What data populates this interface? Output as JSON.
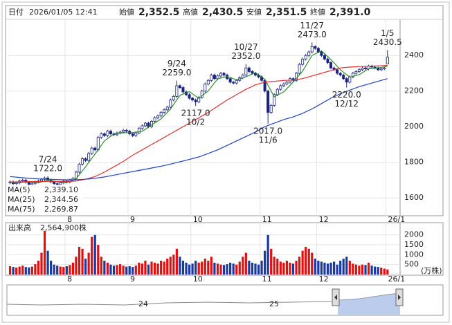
{
  "header": {
    "fields": [
      {
        "label": "日付",
        "value": "2026/01/05 12:41",
        "color": "#222"
      },
      {
        "label": "始値",
        "value": 2352.5,
        "value_label": "2,352.5",
        "color": "#000000"
      },
      {
        "label": "高値",
        "value": 2430.5,
        "value_label": "2,430.5",
        "color": "#e00000"
      },
      {
        "label": "安値",
        "value": 2351.5,
        "value_label": "2,351.5",
        "color": "#008000"
      },
      {
        "label": "終値",
        "value": 2391,
        "value_label": "2,391.0",
        "color": "#000000"
      }
    ]
  },
  "chart_data": [
    {
      "type": "candlestick",
      "up_color": "#ffffff",
      "down_color": "#1a237e",
      "line_color": "#1a237e",
      "ylim": [
        1500,
        2595
      ],
      "yticks": [
        1600,
        1800,
        2000,
        2200,
        2400
      ],
      "xlim": [
        -1,
        124
      ],
      "grid": true,
      "xticks": [
        {
          "value": 17.5,
          "label": "8"
        },
        {
          "value": 37.5,
          "label": "9"
        },
        {
          "value": 57.5,
          "label": "10"
        },
        {
          "value": 79.5,
          "label": "11"
        },
        {
          "value": 97.5,
          "label": "12"
        },
        {
          "value": 119.5,
          "label": "26/1"
        }
      ],
      "candles": {
        "open": [
          1685,
          1690,
          1680,
          1685,
          1695,
          1700,
          1688,
          1675,
          1682,
          1690,
          1695,
          1705,
          1712,
          1700,
          1690,
          1680,
          1675,
          1685,
          1695,
          1690,
          1700,
          1710,
          1745,
          1790,
          1820,
          1810,
          1850,
          1880,
          1870,
          1940,
          1960,
          1950,
          1975,
          1960,
          1955,
          1965,
          1970,
          1980,
          1975,
          1960,
          1950,
          1965,
          1990,
          2005,
          2020,
          2000,
          2030,
          2050,
          2060,
          2080,
          2095,
          2110,
          2150,
          2170,
          2230,
          2220,
          2195,
          2180,
          2160,
          2150,
          2140,
          2165,
          2200,
          2240,
          2260,
          2290,
          2270,
          2285,
          2300,
          2290,
          2270,
          2250,
          2245,
          2260,
          2275,
          2290,
          2330,
          2310,
          2300,
          2290,
          2280,
          2260,
          2200,
          2080,
          2120,
          2180,
          2210,
          2230,
          2240,
          2250,
          2270,
          2260,
          2300,
          2350,
          2380,
          2400,
          2420,
          2450,
          2440,
          2420,
          2400,
          2380,
          2360,
          2330,
          2320,
          2300,
          2290,
          2270,
          2250,
          2280,
          2300,
          2310,
          2320,
          2330,
          2325,
          2340,
          2335,
          2330,
          2320,
          2325,
          2352.5
        ],
        "high": [
          1698,
          1698,
          1693,
          1703,
          1708,
          1708,
          1696,
          1690,
          1698,
          1703,
          1713,
          1720,
          1722,
          1708,
          1698,
          1688,
          1693,
          1703,
          1703,
          1708,
          1718,
          1753,
          1798,
          1828,
          1828,
          1858,
          1888,
          1888,
          1948,
          1968,
          1968,
          1983,
          1983,
          1968,
          1973,
          1978,
          1988,
          1988,
          1983,
          1968,
          1973,
          1998,
          2013,
          2028,
          2028,
          2038,
          2058,
          2068,
          2088,
          2103,
          2118,
          2158,
          2178,
          2259,
          2238,
          2228,
          2203,
          2188,
          2168,
          2158,
          2173,
          2208,
          2248,
          2268,
          2298,
          2298,
          2293,
          2308,
          2308,
          2298,
          2278,
          2258,
          2268,
          2283,
          2298,
          2352,
          2338,
          2318,
          2308,
          2298,
          2288,
          2268,
          2208,
          2128,
          2188,
          2218,
          2238,
          2248,
          2258,
          2278,
          2278,
          2308,
          2358,
          2388,
          2408,
          2428,
          2473,
          2458,
          2448,
          2428,
          2408,
          2388,
          2368,
          2338,
          2328,
          2308,
          2298,
          2278,
          2288,
          2308,
          2318,
          2328,
          2338,
          2338,
          2348,
          2348,
          2343,
          2338,
          2333,
          2338,
          2430.5
        ],
        "low": [
          1677,
          1672,
          1672,
          1677,
          1687,
          1680,
          1667,
          1667,
          1674,
          1682,
          1687,
          1697,
          1692,
          1682,
          1672,
          1667,
          1667,
          1677,
          1682,
          1682,
          1692,
          1702,
          1737,
          1782,
          1802,
          1802,
          1842,
          1862,
          1862,
          1932,
          1942,
          1942,
          1952,
          1947,
          1947,
          1957,
          1962,
          1967,
          1952,
          1942,
          1942,
          1957,
          1982,
          1997,
          1992,
          1992,
          2022,
          2042,
          2052,
          2072,
          2087,
          2102,
          2142,
          2162,
          2212,
          2187,
          2172,
          2152,
          2142,
          2117,
          2132,
          2157,
          2192,
          2232,
          2252,
          2262,
          2262,
          2277,
          2282,
          2262,
          2242,
          2237,
          2237,
          2252,
          2267,
          2282,
          2302,
          2292,
          2282,
          2272,
          2252,
          2192,
          2017,
          2072,
          2112,
          2172,
          2202,
          2222,
          2232,
          2242,
          2252,
          2252,
          2292,
          2342,
          2372,
          2392,
          2412,
          2432,
          2412,
          2392,
          2372,
          2352,
          2322,
          2312,
          2292,
          2282,
          2262,
          2220,
          2242,
          2272,
          2292,
          2302,
          2312,
          2317,
          2317,
          2327,
          2322,
          2312,
          2312,
          2317,
          2351.5
        ],
        "close": [
          1690,
          1680,
          1685,
          1695,
          1700,
          1688,
          1675,
          1682,
          1690,
          1695,
          1705,
          1712,
          1700,
          1690,
          1680,
          1675,
          1685,
          1695,
          1690,
          1700,
          1710,
          1745,
          1790,
          1820,
          1810,
          1850,
          1880,
          1870,
          1940,
          1960,
          1950,
          1975,
          1960,
          1955,
          1965,
          1970,
          1980,
          1975,
          1960,
          1950,
          1965,
          1990,
          2005,
          2020,
          2000,
          2030,
          2050,
          2060,
          2080,
          2095,
          2110,
          2150,
          2170,
          2230,
          2220,
          2195,
          2180,
          2160,
          2150,
          2140,
          2165,
          2200,
          2240,
          2260,
          2290,
          2270,
          2285,
          2300,
          2290,
          2270,
          2250,
          2245,
          2260,
          2275,
          2290,
          2330,
          2310,
          2300,
          2290,
          2280,
          2260,
          2200,
          2080,
          2120,
          2180,
          2210,
          2230,
          2240,
          2250,
          2270,
          2260,
          2300,
          2350,
          2380,
          2400,
          2420,
          2450,
          2440,
          2420,
          2400,
          2380,
          2360,
          2330,
          2320,
          2300,
          2290,
          2270,
          2250,
          2280,
          2300,
          2310,
          2320,
          2330,
          2325,
          2340,
          2335,
          2330,
          2320,
          2325,
          2330,
          2391
        ]
      },
      "series_x": [
        0,
        3,
        6,
        9,
        12,
        15,
        18,
        21,
        24,
        27,
        30,
        33,
        36,
        39,
        42,
        45,
        48,
        51,
        54,
        57,
        60,
        63,
        66,
        69,
        72,
        75,
        78,
        81,
        84,
        87,
        90,
        93,
        96,
        99,
        102,
        105,
        108,
        111,
        114,
        117,
        120
      ],
      "series": [
        {
          "name": "MA(5)",
          "color": "#2e8b2e",
          "last_label": "2,339.10",
          "values": [
            1688,
            1688,
            1689,
            1686,
            1700,
            1691,
            1685,
            1708,
            1775,
            1846,
            1920,
            1960,
            1966,
            1967,
            1974,
            2009,
            2044,
            2099,
            2176,
            2197,
            2159,
            2201,
            2269,
            2283,
            2263,
            2280,
            2304,
            2266,
            2168,
            2196,
            2250,
            2312,
            2400,
            2426,
            2378,
            2320,
            2278,
            2292,
            2325,
            2330,
            2339.1
          ]
        },
        {
          "name": "MA(25)",
          "color": "#e03030",
          "last_label": "2,344.56",
          "values": [
            1690,
            1690,
            1692,
            1692,
            1693,
            1693,
            1692,
            1695,
            1705,
            1720,
            1745,
            1775,
            1805,
            1840,
            1870,
            1900,
            1930,
            1960,
            1990,
            2020,
            2050,
            2080,
            2115,
            2150,
            2180,
            2210,
            2235,
            2250,
            2255,
            2260,
            2262,
            2270,
            2285,
            2300,
            2315,
            2330,
            2335,
            2338,
            2340,
            2342,
            2344.56
          ]
        },
        {
          "name": "MA(75)",
          "color": "#2040c0",
          "last_label": "2,269.87",
          "values": [
            1720,
            1715,
            1710,
            1707,
            1705,
            1703,
            1702,
            1702,
            1705,
            1710,
            1718,
            1728,
            1738,
            1748,
            1758,
            1768,
            1778,
            1790,
            1803,
            1816,
            1830,
            1850,
            1870,
            1895,
            1920,
            1945,
            1970,
            2000,
            2020,
            2040,
            2055,
            2075,
            2100,
            2130,
            2160,
            2185,
            2205,
            2225,
            2240,
            2255,
            2269.87
          ]
        }
      ],
      "annotations": [
        {
          "index": 12,
          "date": "7/24",
          "value": 1722,
          "value_label": "1722.0"
        },
        {
          "index": 53,
          "date": "9/24",
          "value": 2259,
          "value_label": "2259.0"
        },
        {
          "index": 59,
          "date": "10/2",
          "value": 2117,
          "value_label": "2117.0"
        },
        {
          "index": 75,
          "date": "10/27",
          "value": 2352,
          "value_label": "2352.0"
        },
        {
          "index": 82,
          "date": "11/6",
          "value": 2017,
          "value_label": "2017.0"
        },
        {
          "index": 96,
          "date": "11/27",
          "value": 2473,
          "value_label": "2473.0"
        },
        {
          "index": 107,
          "date": "12/12",
          "value": 2220,
          "value_label": "2220.0"
        },
        {
          "index": 120,
          "date": "1/5",
          "value": 2430.5,
          "value_label": "2430.5"
        }
      ]
    },
    {
      "type": "bar",
      "title": "出来高",
      "title_value": "2,564,900株",
      "unit": "(万株)",
      "up_color": "#e01010",
      "down_color": "#1a3aa0",
      "ylim": [
        0,
        2620
      ],
      "yticks": [
        500,
        1000,
        1500,
        2000
      ],
      "xlim": [
        -1,
        124
      ],
      "grid": true,
      "xticks": [
        {
          "value": 17.5,
          "label": "8"
        },
        {
          "value": 37.5,
          "label": "9"
        },
        {
          "value": 57.5,
          "label": "10"
        },
        {
          "value": 79.5,
          "label": "11"
        },
        {
          "value": 97.5,
          "label": "12"
        },
        {
          "value": 119.5,
          "label": "26/1"
        }
      ],
      "values": [
        420,
        380,
        350,
        400,
        450,
        380,
        360,
        400,
        520,
        700,
        1100,
        2200,
        1200,
        700,
        500,
        450,
        400,
        380,
        420,
        480,
        600,
        900,
        1400,
        1300,
        800,
        1100,
        1900,
        2000,
        1500,
        900,
        700,
        600,
        500,
        450,
        480,
        520,
        450,
        400,
        420,
        380,
        450,
        600,
        550,
        700,
        500,
        650,
        600,
        550,
        700,
        650,
        800,
        900,
        1000,
        1300,
        900,
        700,
        600,
        500,
        550,
        700,
        600,
        650,
        800,
        700,
        900,
        600,
        550,
        500,
        480,
        520,
        600,
        550,
        500,
        650,
        900,
        1100,
        700,
        600,
        550,
        500,
        700,
        1200,
        2000,
        1300,
        900,
        800,
        650,
        600,
        700,
        600,
        550,
        700,
        900,
        1200,
        1400,
        1300,
        1100,
        800,
        700,
        650,
        600,
        550,
        600,
        650,
        500,
        700,
        800,
        900,
        700,
        550,
        500,
        450,
        500,
        480,
        600,
        450,
        400,
        380,
        350,
        300,
        256.49
      ]
    }
  ],
  "navigator": {
    "labels": [
      "24",
      "25"
    ]
  }
}
